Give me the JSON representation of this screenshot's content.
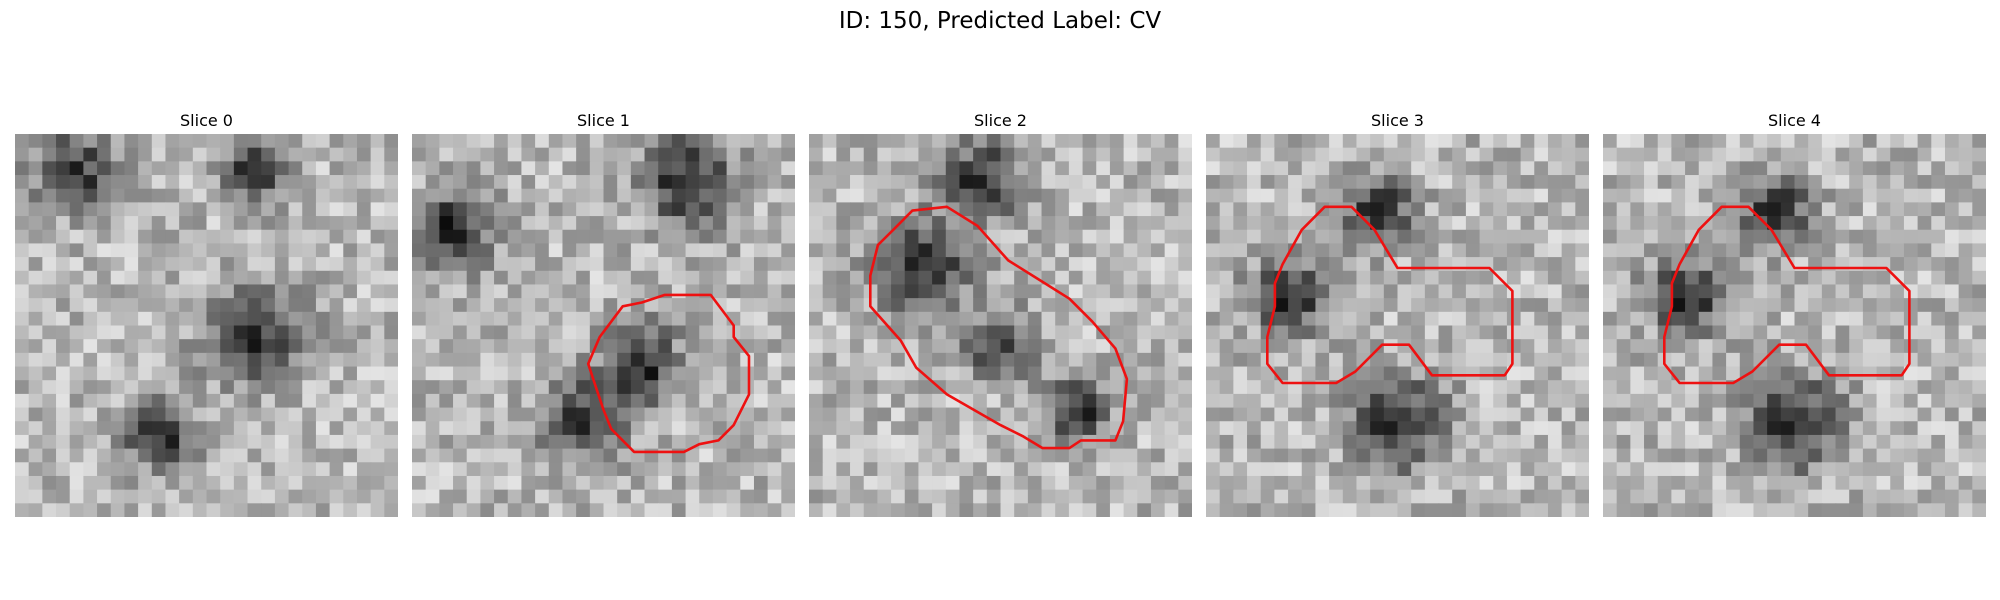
{
  "figure": {
    "title": "ID: 150, Predicted Label: CV",
    "contour_color": "#ee1111",
    "colormap": "gray",
    "slices": [
      {
        "title": "Slice 0",
        "seed": 11,
        "contour": null,
        "dark_blobs": [
          [
            0.38,
            0.78,
            0.09
          ],
          [
            0.62,
            0.52,
            0.12
          ],
          [
            0.62,
            0.1,
            0.08
          ],
          [
            0.15,
            0.1,
            0.1
          ]
        ]
      },
      {
        "title": "Slice 1",
        "seed": 23,
        "contour": "round",
        "dark_blobs": [
          [
            0.45,
            0.75,
            0.1
          ],
          [
            0.72,
            0.12,
            0.12
          ],
          [
            0.1,
            0.25,
            0.1
          ],
          [
            0.6,
            0.6,
            0.1
          ]
        ]
      },
      {
        "title": "Slice 2",
        "seed": 37,
        "contour": "double-lobe",
        "dark_blobs": [
          [
            0.3,
            0.35,
            0.12
          ],
          [
            0.5,
            0.55,
            0.08
          ],
          [
            0.7,
            0.72,
            0.08
          ],
          [
            0.45,
            0.12,
            0.1
          ]
        ]
      },
      {
        "title": "Slice 3",
        "seed": 41,
        "contour": "irregular",
        "dark_blobs": [
          [
            0.22,
            0.42,
            0.1
          ],
          [
            0.5,
            0.75,
            0.12
          ],
          [
            0.45,
            0.2,
            0.09
          ]
        ]
      },
      {
        "title": "Slice 4",
        "seed": 41,
        "contour": "irregular",
        "dark_blobs": [
          [
            0.22,
            0.42,
            0.1
          ],
          [
            0.5,
            0.75,
            0.12
          ],
          [
            0.45,
            0.2,
            0.09
          ]
        ]
      }
    ]
  }
}
